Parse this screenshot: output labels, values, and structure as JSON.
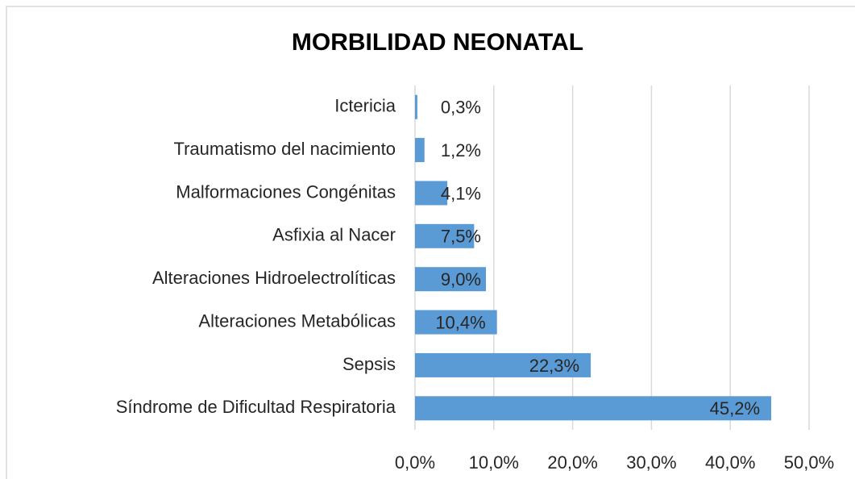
{
  "chart_data": {
    "type": "barh",
    "title": "MORBILIDAD NEONATAL",
    "categories": [
      "Ictericia",
      "Traumatismo del nacimiento",
      "Malformaciones Congénitas",
      "Asfixia al Nacer",
      "Alteraciones Hidroelectrolíticas",
      "Alteraciones Metabólicas",
      "Sepsis",
      "Síndrome de Dificultad Respiratoria"
    ],
    "values": [
      0.3,
      1.2,
      4.1,
      7.5,
      9.0,
      10.4,
      22.3,
      45.2
    ],
    "value_labels": [
      "0,3%",
      "1,2%",
      "4,1%",
      "7,5%",
      "9,0%",
      "10,4%",
      "22,3%",
      "45,2%"
    ],
    "color": "#5b9bd5",
    "xlim": [
      0,
      50
    ],
    "xticks": [
      {
        "value": 0,
        "label": "0,0%"
      },
      {
        "value": 10,
        "label": "10,0%"
      },
      {
        "value": 20,
        "label": "20,0%"
      },
      {
        "value": 30,
        "label": "30,0%"
      },
      {
        "value": 40,
        "label": "40,0%"
      },
      {
        "value": 50,
        "label": "50,0%"
      }
    ],
    "grid": true
  }
}
